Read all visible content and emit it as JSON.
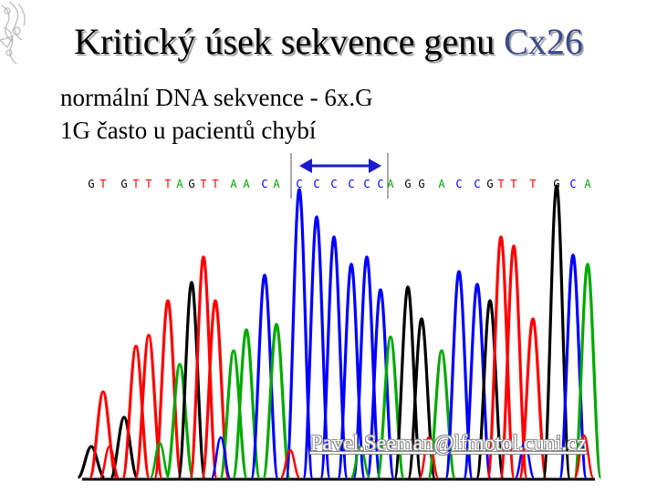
{
  "slide": {
    "title_main": "Kritický úsek sekvence genu ",
    "title_accent": "Cx26",
    "line1": "normální DNA sekvence  - 6x.G",
    "line2": "1G často u pacientů chybí",
    "email": "Pavel.Seeman@lfmotol.cuni.cz"
  },
  "chromatogram": {
    "base_calls": [
      {
        "base": "G",
        "color": "#000000"
      },
      {
        "base": "T",
        "color": "#ff0000"
      },
      {
        "base": "G",
        "color": "#000000"
      },
      {
        "base": "T",
        "color": "#ff0000"
      },
      {
        "base": "T",
        "color": "#ff0000"
      },
      {
        "base": "T",
        "color": "#ff0000"
      },
      {
        "base": "A",
        "color": "#00aa00"
      },
      {
        "base": "G",
        "color": "#000000"
      },
      {
        "base": "T",
        "color": "#ff0000"
      },
      {
        "base": "T",
        "color": "#ff0000"
      },
      {
        "base": "A",
        "color": "#00aa00"
      },
      {
        "base": "A",
        "color": "#00aa00"
      },
      {
        "base": "C",
        "color": "#0000ff"
      },
      {
        "base": "A",
        "color": "#00aa00"
      },
      {
        "base": "C",
        "color": "#0000ff"
      },
      {
        "base": "C",
        "color": "#0000ff"
      },
      {
        "base": "C",
        "color": "#0000ff"
      },
      {
        "base": "C",
        "color": "#0000ff"
      },
      {
        "base": "C",
        "color": "#0000ff"
      },
      {
        "base": "C",
        "color": "#0000ff"
      },
      {
        "base": "A",
        "color": "#00aa00"
      },
      {
        "base": "G",
        "color": "#000000"
      },
      {
        "base": "G",
        "color": "#000000"
      },
      {
        "base": "A",
        "color": "#00aa00"
      },
      {
        "base": "C",
        "color": "#0000ff"
      },
      {
        "base": "C",
        "color": "#0000ff"
      },
      {
        "base": "G",
        "color": "#000000"
      },
      {
        "base": "T",
        "color": "#ff0000"
      },
      {
        "base": "T",
        "color": "#ff0000"
      },
      {
        "base": "T",
        "color": "#ff0000"
      },
      {
        "base": "G",
        "color": "#000000"
      },
      {
        "base": "C",
        "color": "#0000ff"
      },
      {
        "base": "A",
        "color": "#00aa00"
      }
    ],
    "trace_colors": {
      "A": "#00aa00",
      "C": "#0000ff",
      "G": "#000000",
      "T": "#ff0000"
    },
    "highlight_color": "#1a1acc"
  }
}
